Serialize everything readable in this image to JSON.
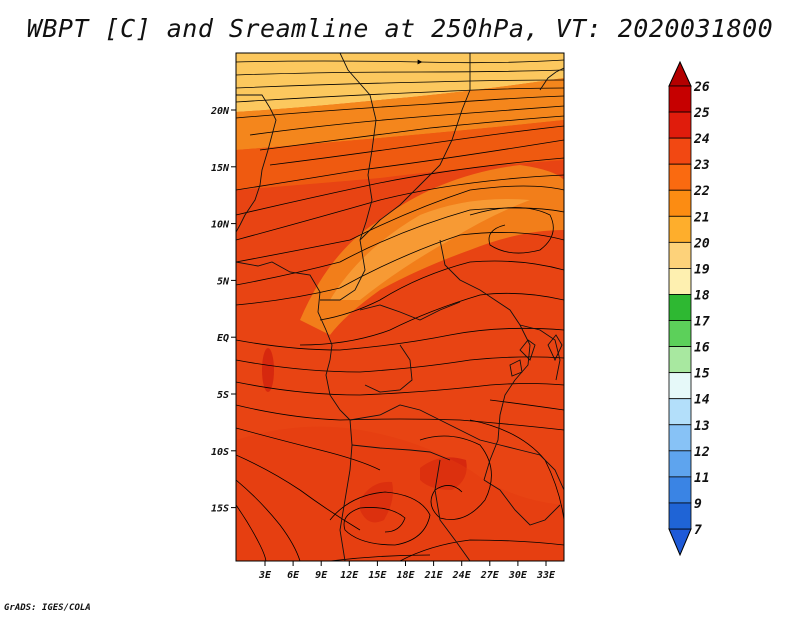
{
  "title": "WBPT [C] and Sreamline at 250hPa, VT: 2020031800",
  "footer": "GrADS: IGES/COLA",
  "map": {
    "lat_labels": [
      "20N",
      "15N",
      "10N",
      "5N",
      "EQ",
      "5S",
      "10S",
      "15S"
    ],
    "lon_labels": [
      "3E",
      "6E",
      "9E",
      "12E",
      "15E",
      "18E",
      "21E",
      "24E",
      "27E",
      "30E",
      "33E"
    ],
    "lat_range": [
      -20,
      25
    ],
    "lon_range": [
      0,
      35
    ],
    "field_palette": {
      "light_orange": "#fcc85e",
      "orange": "#f6921e",
      "dark_orange": "#f06010",
      "red_orange": "#e84413",
      "deep_red": "#d6280e"
    }
  },
  "colorbar": {
    "labels": [
      "26",
      "25",
      "24",
      "23",
      "22",
      "21",
      "20",
      "19",
      "18",
      "17",
      "16",
      "15",
      "14",
      "13",
      "12",
      "11",
      "9",
      "7"
    ],
    "colors": [
      "#c60000",
      "#e01c0c",
      "#f24812",
      "#fa6a10",
      "#fc8c12",
      "#feae2c",
      "#fdd27a",
      "#fef0b0",
      "#2eb832",
      "#5cd05a",
      "#a8e8a0",
      "#e6f9f9",
      "#b3dffa",
      "#87c2f6",
      "#5ea4ee",
      "#3a84e4",
      "#1f64d6"
    ],
    "top_arrow_color": "#b40000",
    "bottom_arrow_color": "#1e5ad8"
  }
}
